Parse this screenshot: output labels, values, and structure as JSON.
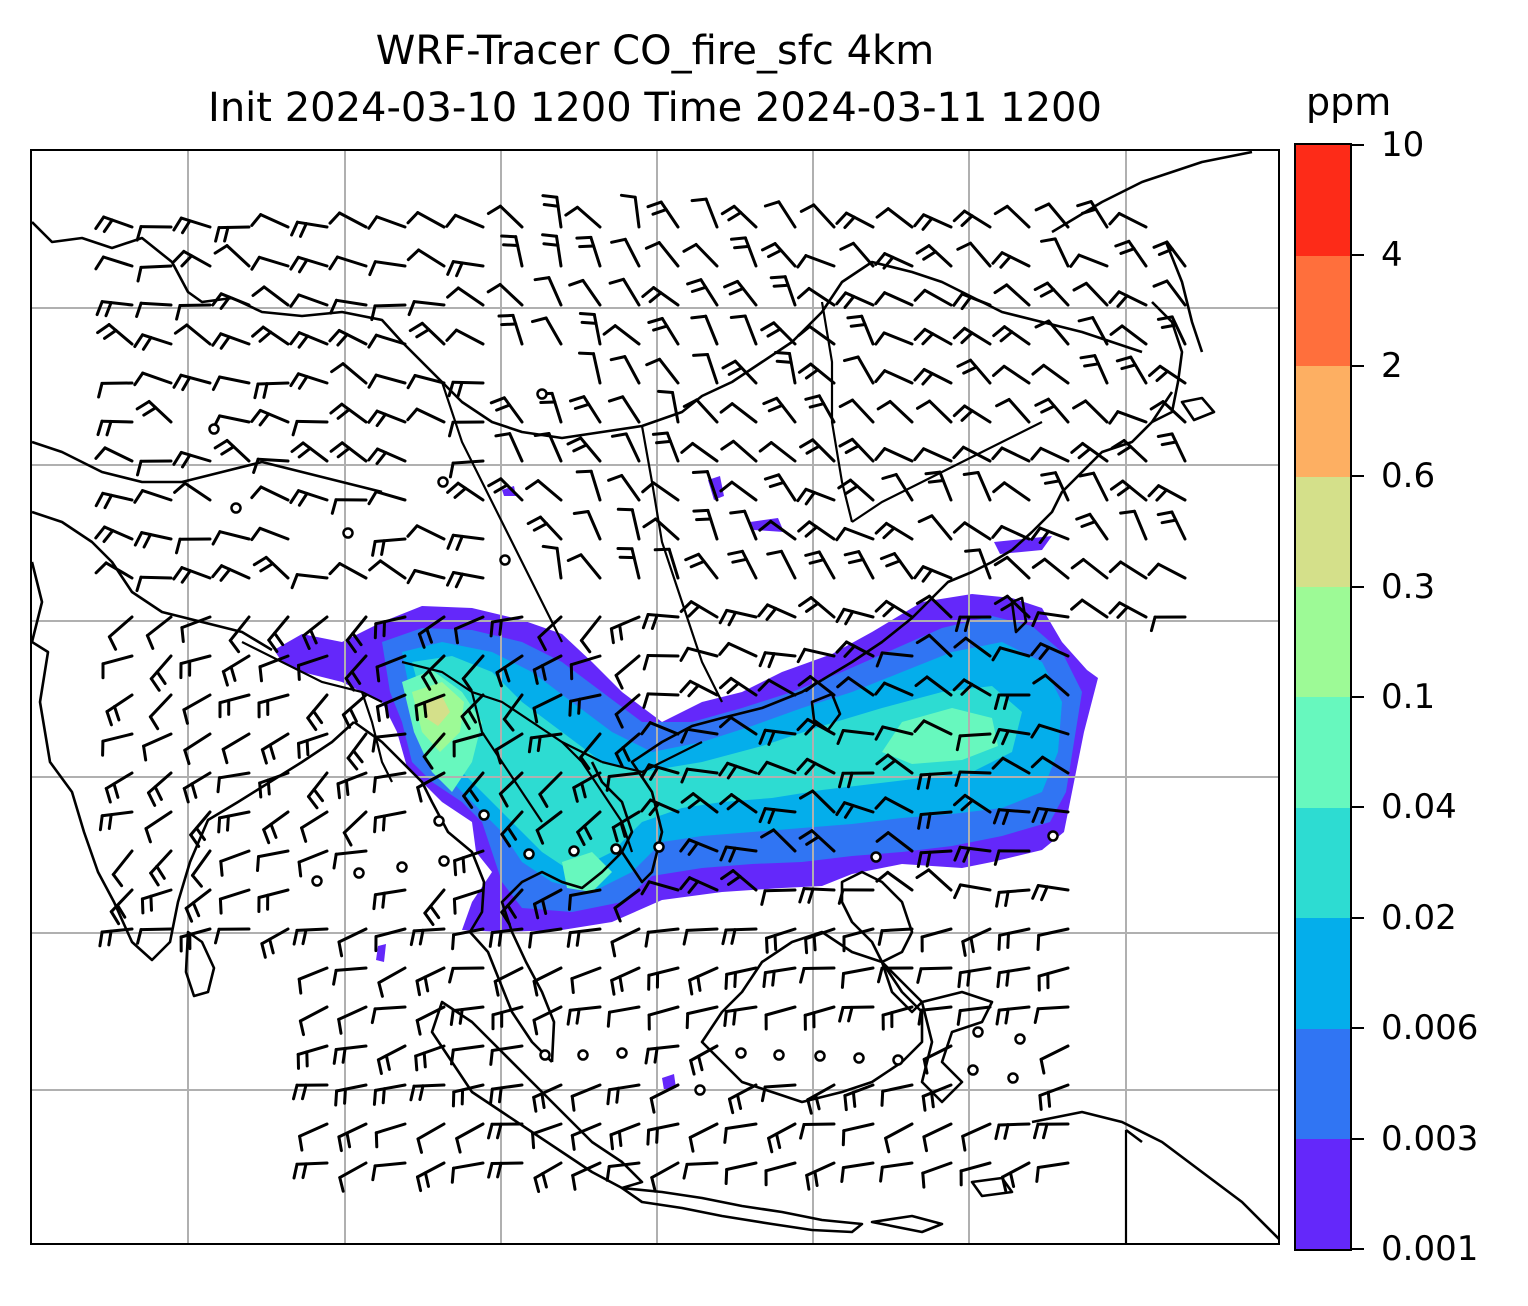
{
  "title_line1": "WRF-Tracer CO_fire_sfc 4km",
  "title_line2": "Init 2024-03-10 1200 Time 2024-03-11 1200",
  "colorbar": {
    "unit": "ppm",
    "tick_labels": [
      "0.001",
      "0.003",
      "0.006",
      "0.02",
      "0.04",
      "0.1",
      "0.3",
      "0.6",
      "2",
      "4",
      "10"
    ],
    "colors": [
      "#6428fa",
      "#3075f3",
      "#04aeeb",
      "#2ddcd2",
      "#67f8be",
      "#9dfa96",
      "#d4e08a",
      "#fdaf62",
      "#ff6f3c",
      "#fd2b18"
    ]
  },
  "map": {
    "gridlines": true,
    "features": [
      "coastlines",
      "country-borders",
      "wind-barbs",
      "co-fire-plume"
    ]
  }
}
